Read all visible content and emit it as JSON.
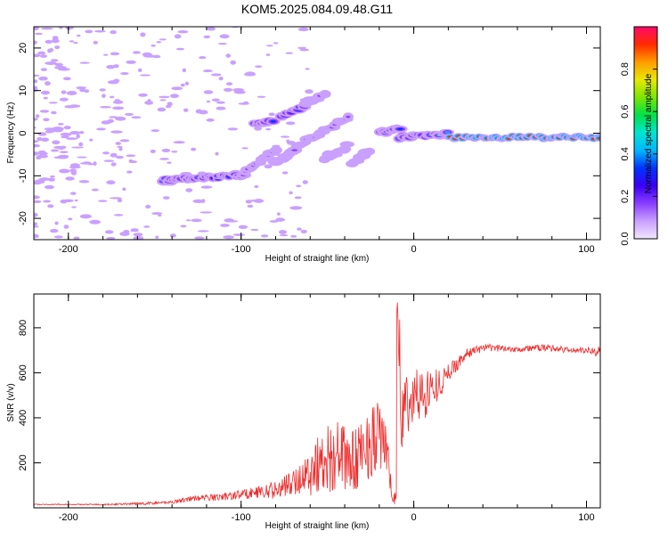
{
  "title": "KOM5.2025.084.09.48.G11",
  "colors": {
    "snr_line": "#ee2b2b",
    "axis": "#000000",
    "colormap": [
      "#f2e6ff",
      "#c9a0ff",
      "#8a3dff",
      "#3a00f5",
      "#0033ff",
      "#00b7ff",
      "#00e5d0",
      "#00e14a",
      "#7ce600",
      "#e8e800",
      "#ff9c00",
      "#ff2a00",
      "#ff0a6a"
    ]
  },
  "chart_data": [
    {
      "type": "heatmap",
      "xlabel": "Height of straight line (km)",
      "ylabel": "Frequency (Hz)",
      "xlim": [
        -220,
        108
      ],
      "ylim": [
        -25,
        25
      ],
      "xticks": [
        {
          "value": -200,
          "label": "-200"
        },
        {
          "value": -100,
          "label": "-100"
        },
        {
          "value": 0,
          "label": "0"
        },
        {
          "value": 100,
          "label": "100"
        }
      ],
      "yticks": [
        {
          "value": -20,
          "label": "-20"
        },
        {
          "value": -10,
          "label": "-10"
        },
        {
          "value": 0,
          "label": "0"
        },
        {
          "value": 10,
          "label": "10"
        },
        {
          "value": 20,
          "label": "20"
        }
      ],
      "colorbar": {
        "label": "Normalized spectral amplitude",
        "range": [
          0,
          1
        ],
        "ticks": [
          {
            "value": 0.0,
            "label": "0.0"
          },
          {
            "value": 0.2,
            "label": "0.2"
          },
          {
            "value": 0.4,
            "label": "0.4"
          },
          {
            "value": 0.6,
            "label": "0.6"
          },
          {
            "value": 0.8,
            "label": "0.8"
          }
        ]
      },
      "features": [
        {
          "x": [
            -145,
            -100
          ],
          "y": [
            -11,
            -10
          ],
          "amp": 0.4
        },
        {
          "x": [
            -100,
            -80
          ],
          "y": [
            -10,
            -4
          ],
          "amp": 0.15
        },
        {
          "x": [
            -92,
            -82
          ],
          "y": [
            2,
            3
          ],
          "amp": 0.3
        },
        {
          "x": [
            -78,
            -64
          ],
          "y": [
            4,
            6
          ],
          "amp": 0.3
        },
        {
          "x": [
            -62,
            -52
          ],
          "y": [
            7,
            9
          ],
          "amp": 0.15
        },
        {
          "x": [
            -80,
            -60
          ],
          "y": [
            -7,
            -1
          ],
          "amp": 0.15
        },
        {
          "x": [
            -58,
            -38
          ],
          "y": [
            -1,
            4
          ],
          "amp": 0.15
        },
        {
          "x": [
            -52,
            -38
          ],
          "y": [
            -6,
            -3
          ],
          "amp": 0.12
        },
        {
          "x": [
            -35,
            -25
          ],
          "y": [
            -7,
            -4
          ],
          "amp": 0.12
        },
        {
          "x": [
            -20,
            -8
          ],
          "y": [
            0,
            1
          ],
          "amp": 0.35
        },
        {
          "x": [
            -8,
            20
          ],
          "y": [
            -1,
            0
          ],
          "amp": 0.45
        },
        {
          "x": [
            20,
            108
          ],
          "y": [
            -1,
            -1
          ],
          "amp": 0.95
        }
      ]
    },
    {
      "type": "line",
      "xlabel": "Height of straight line (km)",
      "ylabel": "SNR (v/v)",
      "xlim": [
        -220,
        108
      ],
      "ylim": [
        0,
        950
      ],
      "xticks": [
        {
          "value": -200,
          "label": "-200"
        },
        {
          "value": -100,
          "label": "-100"
        },
        {
          "value": 0,
          "label": "0"
        },
        {
          "value": 100,
          "label": "100"
        }
      ],
      "yticks": [
        {
          "value": 200,
          "label": "200"
        },
        {
          "value": 400,
          "label": "400"
        },
        {
          "value": 600,
          "label": "600"
        },
        {
          "value": 800,
          "label": "800"
        }
      ],
      "series": [
        {
          "x": [
            -220,
            -180,
            -160,
            -140,
            -130,
            -120,
            -110,
            -100,
            -90,
            -80,
            -70,
            -60,
            -55,
            -50,
            -45,
            -40,
            -35,
            -30,
            -25,
            -20,
            -16,
            -12,
            -10,
            -8,
            -6,
            -4,
            -2,
            0,
            4,
            8,
            12,
            16,
            20,
            25,
            30,
            35,
            40,
            50,
            60,
            70,
            80,
            90,
            100,
            106,
            108
          ],
          "y": [
            15,
            15,
            18,
            25,
            40,
            45,
            50,
            60,
            70,
            80,
            110,
            160,
            200,
            220,
            230,
            220,
            200,
            250,
            300,
            320,
            260,
            30,
            60,
            350,
            450,
            460,
            470,
            490,
            500,
            520,
            540,
            560,
            600,
            640,
            680,
            700,
            710,
            710,
            705,
            710,
            710,
            700,
            700,
            690,
            720
          ],
          "noise": [
            2,
            3,
            5,
            8,
            12,
            15,
            18,
            22,
            28,
            40,
            60,
            110,
            140,
            160,
            160,
            150,
            140,
            160,
            170,
            160,
            120,
            10,
            60,
            180,
            160,
            150,
            140,
            140,
            120,
            110,
            80,
            60,
            40,
            30,
            25,
            20,
            18,
            15,
            15,
            15,
            15,
            15,
            15,
            20,
            40
          ]
        }
      ]
    }
  ]
}
